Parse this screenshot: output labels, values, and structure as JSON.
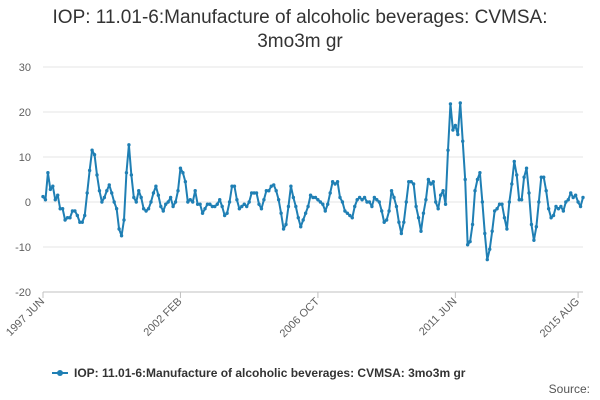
{
  "chart_data": {
    "type": "line",
    "title_lines": [
      "IOP: 11.01-6:Manufacture of alcoholic beverages: CVMSA:",
      "3mo3m gr"
    ],
    "xlabel": "",
    "ylabel": "",
    "ylim": [
      -20,
      30
    ],
    "yticks": [
      30,
      20,
      10,
      0,
      -10,
      -20
    ],
    "x_start": "1997 JUN",
    "x_end": "2015 AUG",
    "xtick_labels": [
      {
        "label": "1997 JUN",
        "index": 0
      },
      {
        "label": "2002 FEB",
        "index": 56
      },
      {
        "label": "2006 OCT",
        "index": 112
      },
      {
        "label": "2011 JUN",
        "index": 168
      },
      {
        "label": "2015 AUG",
        "index": 218
      }
    ],
    "grid": true,
    "legend_position": "bottom",
    "series": [
      {
        "name": "IOP: 11.01-6:Manufacture of alcoholic beverages: CVMSA: 3mo3m gr",
        "color": "#1f7fb4",
        "values": [
          1.2,
          0.5,
          6.5,
          2.8,
          3.5,
          0.5,
          1.5,
          -1.5,
          -1.5,
          -4.0,
          -3.5,
          -3.5,
          -2.0,
          -2.0,
          -3.0,
          -4.5,
          -4.5,
          -3.0,
          2.0,
          7.0,
          11.5,
          10.5,
          6.0,
          2.5,
          0.0,
          1.0,
          2.5,
          3.8,
          2.0,
          0.0,
          -1.5,
          -6.0,
          -7.5,
          -4.0,
          6.5,
          12.7,
          6.0,
          1.0,
          0.0,
          2.5,
          1.0,
          -1.5,
          -2.0,
          -1.5,
          0.0,
          2.0,
          3.5,
          1.5,
          -1.0,
          -2.0,
          -0.5,
          0.0,
          1.0,
          -1.0,
          0.0,
          2.5,
          7.5,
          6.5,
          4.5,
          0.0,
          0.5,
          0.0,
          2.5,
          -0.5,
          -0.5,
          -2.5,
          -1.5,
          -0.5,
          -0.5,
          -1.0,
          -1.0,
          -0.5,
          0.5,
          -1.0,
          -3.0,
          -2.5,
          0.0,
          3.5,
          3.5,
          0.5,
          -1.5,
          -1.0,
          -0.5,
          -1.0,
          0.0,
          2.0,
          2.0,
          2.0,
          -0.5,
          -1.5,
          0.5,
          2.5,
          2.5,
          3.5,
          3.8,
          2.5,
          0.5,
          -2.5,
          -6.0,
          -5.0,
          -1.0,
          3.5,
          1.0,
          -1.0,
          -3.5,
          -5.5,
          -4.0,
          -2.5,
          -1.0,
          1.5,
          1.0,
          1.0,
          0.5,
          0.0,
          -0.5,
          -2.0,
          -0.5,
          2.0,
          4.5,
          4.0,
          4.5,
          1.0,
          0.0,
          -2.0,
          -2.5,
          -3.0,
          -3.5,
          -1.0,
          0.5,
          1.0,
          0.5,
          1.0,
          0.0,
          0.0,
          -1.0,
          1.0,
          0.5,
          0.0,
          -2.0,
          -4.5,
          -4.0,
          -2.0,
          2.5,
          1.0,
          -1.0,
          -4.5,
          -7.0,
          -4.5,
          0.0,
          4.5,
          4.5,
          4.0,
          -1.0,
          -3.5,
          -6.5,
          -2.5,
          0.5,
          5.0,
          4.0,
          4.5,
          0.0,
          -1.5,
          1.5,
          2.5,
          -0.5,
          11.5,
          21.8,
          16.0,
          17.0,
          15.0,
          22.0,
          13.5,
          5.0,
          -9.5,
          -8.8,
          -5.0,
          2.5,
          5.0,
          6.5,
          0.0,
          -7.0,
          -12.8,
          -10.5,
          -6.5,
          -2.0,
          -1.5,
          -0.5,
          -0.5,
          -3.5,
          -6.0,
          0.0,
          4.0,
          9.0,
          6.0,
          0.5,
          0.5,
          5.5,
          7.5,
          2.0,
          -5.0,
          -8.5,
          -5.5,
          0.0,
          5.5,
          5.5,
          2.5,
          -1.5,
          -3.5,
          -3.0,
          -1.0,
          -1.5,
          -1.0,
          -2.0,
          0.0,
          0.5,
          2.0,
          1.0,
          1.5,
          0.0,
          -1.0,
          1.0
        ]
      }
    ]
  },
  "footer": {
    "source": "Source:"
  }
}
